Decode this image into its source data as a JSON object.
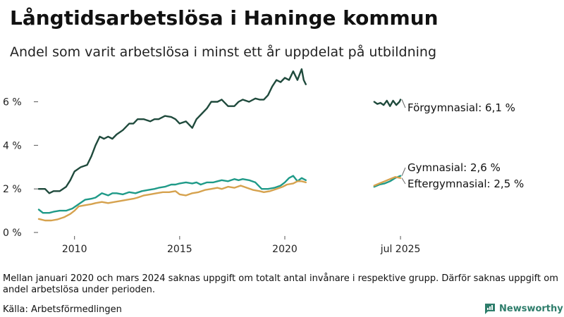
{
  "header": {
    "title": "Långtidsarbetslösa i Haninge kommun",
    "subtitle": "Andel som varit arbetslösa i minst ett år uppdelat på utbildning"
  },
  "footer": {
    "note": "Mellan januari 2020 och mars 2024 saknas uppgift om totalt antal invånare i respektive grupp. Därför saknas uppgift om andel arbetslösa under perioden.",
    "source": "Källa: Arbetsförmedlingen",
    "brand": "Newsworthy"
  },
  "colors": {
    "forgymnasial": "#1f4a3c",
    "gymnasial": "#1f9a88",
    "eftergymnasial": "#d6a24e",
    "brand": "#2e7d6b"
  },
  "chart_data": {
    "type": "line",
    "title": "Långtidsarbetslösa i Haninge kommun",
    "subtitle": "Andel som varit arbetslösa i minst ett år uppdelat på utbildning",
    "x_unit": "year",
    "xlim": [
      2008.2,
      2025.9
    ],
    "ylim": [
      0,
      7.6
    ],
    "grid": false,
    "x_tick_labels": [
      {
        "x": 2010,
        "label": "2010"
      },
      {
        "x": 2015,
        "label": "2015"
      },
      {
        "x": 2020,
        "label": "2020"
      },
      {
        "x": 2025.5,
        "label": "jul 2025"
      }
    ],
    "y_tick_labels": [
      {
        "y": 0,
        "label": "0 %"
      },
      {
        "y": 2,
        "label": "2 %"
      },
      {
        "y": 4,
        "label": "4 %"
      },
      {
        "y": 6,
        "label": "6 %"
      }
    ],
    "series": [
      {
        "name": "Förgymnasial",
        "end_label": "Förgymnasial: 6,1 %",
        "color_key": "forgymnasial",
        "segments": [
          {
            "x": [
              2008.3,
              2008.6,
              2008.8,
              2009.0,
              2009.3,
              2009.6,
              2009.8,
              2010.0,
              2010.3,
              2010.6,
              2010.8,
              2011.0,
              2011.2,
              2011.4,
              2011.6,
              2011.8,
              2012.0,
              2012.3,
              2012.6,
              2012.8,
              2013.0,
              2013.3,
              2013.6,
              2013.8,
              2014.0,
              2014.3,
              2014.6,
              2014.8,
              2015.0,
              2015.3,
              2015.6,
              2015.8,
              2016.0,
              2016.3,
              2016.5,
              2016.8,
              2017.0,
              2017.3,
              2017.6,
              2017.8,
              2018.0,
              2018.3,
              2018.6,
              2018.8,
              2019.0,
              2019.2,
              2019.4,
              2019.6,
              2019.8,
              2020.0,
              2020.2,
              2020.4,
              2020.6,
              2020.8,
              2020.9,
              2021.0
            ],
            "y": [
              2.0,
              2.0,
              1.8,
              1.9,
              1.9,
              2.1,
              2.4,
              2.8,
              3.0,
              3.1,
              3.5,
              4.0,
              4.4,
              4.3,
              4.4,
              4.3,
              4.5,
              4.7,
              5.0,
              5.0,
              5.2,
              5.2,
              5.1,
              5.2,
              5.2,
              5.35,
              5.3,
              5.2,
              5.0,
              5.1,
              4.8,
              5.2,
              5.4,
              5.7,
              6.0,
              6.0,
              6.1,
              5.8,
              5.8,
              6.0,
              6.1,
              6.0,
              6.15,
              6.1,
              6.1,
              6.3,
              6.7,
              7.0,
              6.9,
              7.1,
              7.0,
              7.4,
              7.0,
              7.5,
              7.0,
              6.8
            ]
          },
          {
            "x": [
              2024.25,
              2024.4,
              2024.55,
              2024.7,
              2024.85,
              2025.0,
              2025.15,
              2025.3,
              2025.45,
              2025.5
            ],
            "y": [
              6.0,
              5.9,
              5.95,
              5.85,
              6.05,
              5.8,
              6.05,
              5.85,
              6.0,
              6.1
            ]
          }
        ]
      },
      {
        "name": "Gymnasial",
        "end_label": "Gymnasial: 2,6 %",
        "color_key": "gymnasial",
        "segments": [
          {
            "x": [
              2008.3,
              2008.5,
              2008.8,
              2009.0,
              2009.3,
              2009.6,
              2009.9,
              2010.2,
              2010.5,
              2010.8,
              2011.0,
              2011.3,
              2011.6,
              2011.8,
              2012.0,
              2012.3,
              2012.6,
              2012.9,
              2013.2,
              2013.5,
              2013.8,
              2014.0,
              2014.3,
              2014.6,
              2014.8,
              2015.0,
              2015.3,
              2015.6,
              2015.8,
              2016.0,
              2016.3,
              2016.6,
              2016.8,
              2017.0,
              2017.3,
              2017.6,
              2017.8,
              2018.0,
              2018.3,
              2018.6,
              2018.9,
              2019.2,
              2019.5,
              2019.8,
              2020.0,
              2020.2,
              2020.4,
              2020.6,
              2020.8,
              2021.0
            ],
            "y": [
              1.05,
              0.9,
              0.9,
              0.95,
              1.0,
              1.0,
              1.1,
              1.3,
              1.5,
              1.55,
              1.6,
              1.8,
              1.7,
              1.8,
              1.8,
              1.75,
              1.85,
              1.8,
              1.9,
              1.95,
              2.0,
              2.05,
              2.1,
              2.2,
              2.2,
              2.25,
              2.3,
              2.25,
              2.3,
              2.2,
              2.3,
              2.3,
              2.35,
              2.4,
              2.35,
              2.45,
              2.4,
              2.45,
              2.4,
              2.3,
              2.0,
              2.0,
              2.05,
              2.15,
              2.3,
              2.5,
              2.6,
              2.35,
              2.5,
              2.4
            ]
          },
          {
            "x": [
              2024.25,
              2024.5,
              2024.75,
              2025.0,
              2025.25,
              2025.5
            ],
            "y": [
              2.1,
              2.2,
              2.25,
              2.35,
              2.5,
              2.6
            ]
          }
        ]
      },
      {
        "name": "Eftergymnasial",
        "end_label": "Eftergymnasial: 2,5 %",
        "color_key": "eftergymnasial",
        "segments": [
          {
            "x": [
              2008.3,
              2008.6,
              2008.9,
              2009.2,
              2009.5,
              2009.8,
              2010.0,
              2010.2,
              2010.5,
              2010.8,
              2011.0,
              2011.3,
              2011.6,
              2011.9,
              2012.2,
              2012.5,
              2012.8,
              2013.0,
              2013.3,
              2013.6,
              2013.9,
              2014.2,
              2014.5,
              2014.8,
              2015.0,
              2015.3,
              2015.6,
              2015.9,
              2016.2,
              2016.5,
              2016.8,
              2017.0,
              2017.3,
              2017.6,
              2017.9,
              2018.2,
              2018.5,
              2018.8,
              2019.0,
              2019.3,
              2019.6,
              2019.9,
              2020.1,
              2020.4,
              2020.6,
              2020.8,
              2021.0
            ],
            "y": [
              0.62,
              0.55,
              0.55,
              0.6,
              0.7,
              0.85,
              1.0,
              1.2,
              1.25,
              1.3,
              1.35,
              1.4,
              1.35,
              1.4,
              1.45,
              1.5,
              1.55,
              1.6,
              1.7,
              1.75,
              1.8,
              1.85,
              1.85,
              1.9,
              1.75,
              1.7,
              1.8,
              1.85,
              1.95,
              2.0,
              2.05,
              2.0,
              2.1,
              2.05,
              2.15,
              2.05,
              1.95,
              1.9,
              1.85,
              1.9,
              2.0,
              2.1,
              2.2,
              2.25,
              2.35,
              2.35,
              2.3
            ]
          },
          {
            "x": [
              2024.25,
              2024.5,
              2024.75,
              2025.0,
              2025.25,
              2025.5
            ],
            "y": [
              2.15,
              2.25,
              2.35,
              2.45,
              2.55,
              2.5
            ]
          }
        ]
      }
    ]
  }
}
